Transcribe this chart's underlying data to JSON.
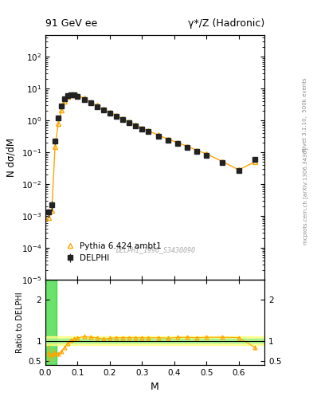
{
  "title_left": "91 GeV ee",
  "title_right": "γ*/Z (Hadronic)",
  "ylabel_main": "N dσ/dM",
  "ylabel_ratio": "Ratio to DELPHI",
  "xlabel": "M",
  "right_label_top": "Rivet 3.1.10,  500k events",
  "right_label_bottom": "mcplots.cern.ch [arXiv:1306.3436]",
  "watermark": "DELPHI_1996_S3430090",
  "legend_data": "DELPHI",
  "legend_mc": "Pythia 6.424 ambt1",
  "delphi_x": [
    0.01,
    0.02,
    0.03,
    0.04,
    0.05,
    0.06,
    0.07,
    0.08,
    0.09,
    0.1,
    0.12,
    0.14,
    0.16,
    0.18,
    0.2,
    0.22,
    0.24,
    0.26,
    0.28,
    0.3,
    0.32,
    0.35,
    0.38,
    0.41,
    0.44,
    0.47,
    0.5,
    0.55,
    0.6,
    0.65
  ],
  "delphi_y": [
    0.0013,
    0.0022,
    0.22,
    1.2,
    2.9,
    4.8,
    6.0,
    6.5,
    6.3,
    5.8,
    4.5,
    3.55,
    2.75,
    2.15,
    1.7,
    1.35,
    1.06,
    0.85,
    0.68,
    0.54,
    0.44,
    0.325,
    0.245,
    0.188,
    0.143,
    0.108,
    0.082,
    0.047,
    0.026,
    0.06
  ],
  "delphi_yerr": [
    0.0004,
    0.0008,
    0.04,
    0.1,
    0.15,
    0.22,
    0.25,
    0.25,
    0.23,
    0.21,
    0.17,
    0.13,
    0.11,
    0.08,
    0.065,
    0.055,
    0.045,
    0.037,
    0.03,
    0.025,
    0.02,
    0.015,
    0.011,
    0.009,
    0.007,
    0.005,
    0.004,
    0.003,
    0.002,
    0.005
  ],
  "pythia_x": [
    0.01,
    0.02,
    0.03,
    0.04,
    0.05,
    0.06,
    0.07,
    0.08,
    0.09,
    0.1,
    0.12,
    0.14,
    0.16,
    0.18,
    0.2,
    0.22,
    0.24,
    0.26,
    0.28,
    0.3,
    0.32,
    0.35,
    0.38,
    0.41,
    0.44,
    0.47,
    0.5,
    0.55,
    0.6,
    0.65
  ],
  "pythia_y": [
    0.0009,
    0.00145,
    0.155,
    0.8,
    2.15,
    4.05,
    5.65,
    6.6,
    6.6,
    6.2,
    4.95,
    3.85,
    2.95,
    2.25,
    1.8,
    1.45,
    1.14,
    0.915,
    0.73,
    0.58,
    0.47,
    0.35,
    0.26,
    0.203,
    0.155,
    0.116,
    0.089,
    0.051,
    0.028,
    0.05
  ],
  "ratio_y": [
    0.69,
    0.66,
    0.7,
    0.67,
    0.74,
    0.84,
    0.94,
    1.015,
    1.048,
    1.069,
    1.1,
    1.085,
    1.073,
    1.047,
    1.059,
    1.074,
    1.075,
    1.076,
    1.074,
    1.074,
    1.068,
    1.077,
    1.061,
    1.08,
    1.084,
    1.074,
    1.085,
    1.085,
    1.077,
    0.833
  ],
  "ratio_yerr": [
    0.2,
    0.15,
    0.08,
    0.05,
    0.035,
    0.028,
    0.023,
    0.02,
    0.018,
    0.016,
    0.014,
    0.012,
    0.011,
    0.01,
    0.01,
    0.01,
    0.01,
    0.01,
    0.01,
    0.01,
    0.01,
    0.01,
    0.01,
    0.01,
    0.01,
    0.01,
    0.012,
    0.013,
    0.015,
    0.05
  ],
  "data_color": "#222222",
  "mc_color": "#FFA500",
  "ratio_line_color": "#000000",
  "green_band_light": "#90ee90",
  "yellow_band_color": "#ffff80",
  "xlim": [
    0.0,
    0.68
  ],
  "ylim_main_log": [
    1e-05,
    500
  ],
  "ylim_ratio": [
    0.4,
    2.5
  ],
  "ratio_yticks": [
    0.5,
    1.0,
    2.0
  ],
  "ratio_yticklabels": [
    "0.5",
    "1",
    "2"
  ]
}
